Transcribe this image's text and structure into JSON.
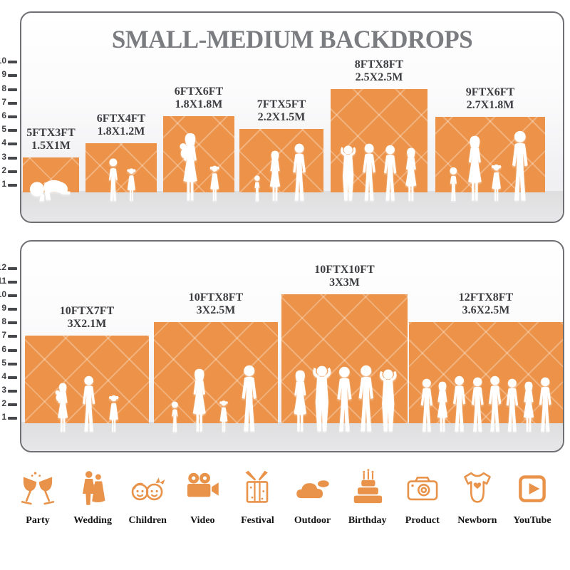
{
  "title": "SMALL-MEDIUM BACKDROPS",
  "colors": {
    "backdrop_orange": "#EC9349",
    "icon_orange": "#E8924A",
    "title_gray": "#7A7C80",
    "label_color": "#3C3D40",
    "ruler_color": "#47484B",
    "panel_border": "#6F7073",
    "floor_gray": "#E2E2E4"
  },
  "panels": [
    {
      "name": "top",
      "ruler": [
        "10",
        "9",
        "8",
        "7",
        "6",
        "5",
        "4",
        "3",
        "2",
        "1"
      ],
      "backdrops": [
        {
          "size_ft": "5FTX3FT",
          "size_m": "1.5X1M",
          "width_ft": 5,
          "height_ft": 3,
          "people": [
            "crawling-baby"
          ]
        },
        {
          "size_ft": "6FTX4FT",
          "size_m": "1.8X1.2M",
          "width_ft": 6,
          "height_ft": 4,
          "people": [
            "boy",
            "girl"
          ]
        },
        {
          "size_ft": "6FTX6FT",
          "size_m": "1.8X1.8M",
          "width_ft": 6,
          "height_ft": 6,
          "people": [
            "woman-holding-baby",
            "girl"
          ]
        },
        {
          "size_ft": "7FTX5FT",
          "size_m": "2.2X1.5M",
          "width_ft": 7,
          "height_ft": 5,
          "people": [
            "toddler",
            "woman",
            "man"
          ]
        },
        {
          "size_ft": "8FTX8FT",
          "size_m": "2.5X2.5M",
          "width_ft": 8,
          "height_ft": 8,
          "people": [
            "man-arms-up",
            "man",
            "man",
            "woman"
          ]
        },
        {
          "size_ft": "9FTX6FT",
          "size_m": "2.7X1.8M",
          "width_ft": 9,
          "height_ft": 6,
          "people": [
            "toddler",
            "woman",
            "girl",
            "man"
          ]
        }
      ]
    },
    {
      "name": "bottom",
      "ruler": [
        "12",
        "11",
        "10",
        "9",
        "8",
        "7",
        "6",
        "5",
        "4",
        "3",
        "2",
        "1"
      ],
      "backdrops": [
        {
          "size_ft": "10FTX7FT",
          "size_m": "3X2.1M",
          "width_ft": 10,
          "height_ft": 7,
          "people": [
            "woman-holding-baby",
            "man",
            "girl"
          ]
        },
        {
          "size_ft": "10FTX8FT",
          "size_m": "3X2.5M",
          "width_ft": 10,
          "height_ft": 8,
          "people": [
            "toddler",
            "woman",
            "girl",
            "man"
          ]
        },
        {
          "size_ft": "10FTX10FT",
          "size_m": "3X3M",
          "width_ft": 10,
          "height_ft": 10,
          "people": [
            "woman",
            "man-arms-up",
            "man",
            "man",
            "man-arms-up"
          ]
        },
        {
          "size_ft": "12FTX8FT",
          "size_m": "3.6X2.5M",
          "width_ft": 12,
          "height_ft": 8,
          "people": [
            "man",
            "woman",
            "man",
            "man",
            "man",
            "man",
            "woman",
            "man"
          ]
        }
      ]
    }
  ],
  "categories": [
    {
      "label": "Party",
      "icon": "party-icon"
    },
    {
      "label": "Wedding",
      "icon": "wedding-icon"
    },
    {
      "label": "Children",
      "icon": "children-icon"
    },
    {
      "label": "Video",
      "icon": "video-icon"
    },
    {
      "label": "Festival",
      "icon": "festival-icon"
    },
    {
      "label": "Outdoor",
      "icon": "outdoor-icon"
    },
    {
      "label": "Birthday",
      "icon": "birthday-icon"
    },
    {
      "label": "Product",
      "icon": "product-icon"
    },
    {
      "label": "Newborn",
      "icon": "newborn-icon"
    },
    {
      "label": "YouTube",
      "icon": "youtube-icon"
    }
  ]
}
